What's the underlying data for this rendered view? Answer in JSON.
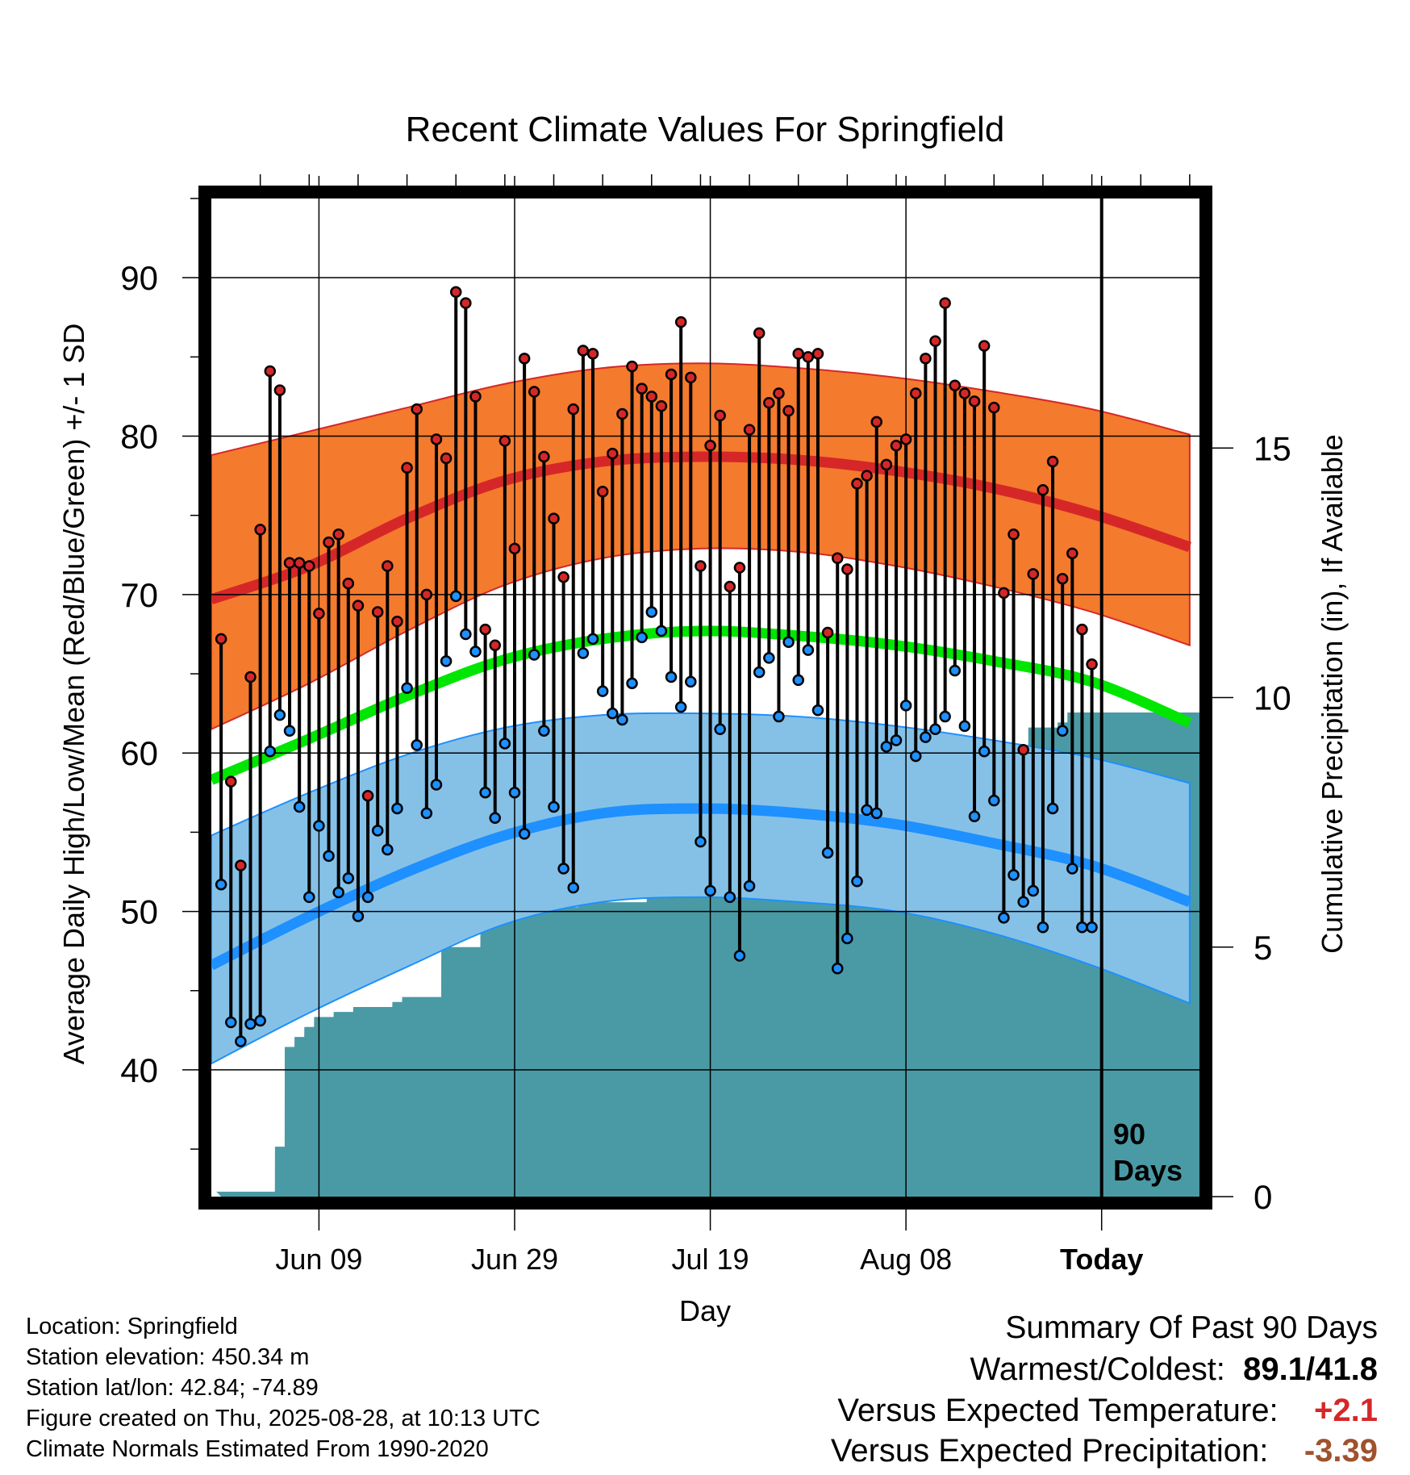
{
  "chart_data": {
    "type": "line",
    "title": "Recent Climate Values For Springfield",
    "xlabel": "Day",
    "ylabel": "Average Daily High/Low/Mean (Red/Blue/Green) +/- 1 SD",
    "y2label": "Cumulative Precipitation (in), If Available",
    "ylim": [
      32,
      95
    ],
    "y2lim": [
      0,
      20
    ],
    "yticks": [
      40,
      50,
      60,
      70,
      80,
      90
    ],
    "y2ticks": [
      0,
      5,
      10,
      15
    ],
    "xlim": [
      "2025-05-29",
      "2025-09-07"
    ],
    "xticks": [
      {
        "date": "2025-06-09",
        "label": "Jun 09"
      },
      {
        "date": "2025-06-29",
        "label": "Jun 29"
      },
      {
        "date": "2025-07-19",
        "label": "Jul 19"
      },
      {
        "date": "2025-08-08",
        "label": "Aug 08"
      },
      {
        "date": "2025-08-28",
        "label": "Today"
      }
    ],
    "today_marker": {
      "date": "2025-08-28",
      "label_line1": "90",
      "label_line2": "Days"
    },
    "dates": [
      "2025-05-30",
      "2025-05-31",
      "2025-06-01",
      "2025-06-02",
      "2025-06-03",
      "2025-06-04",
      "2025-06-05",
      "2025-06-06",
      "2025-06-07",
      "2025-06-08",
      "2025-06-09",
      "2025-06-10",
      "2025-06-11",
      "2025-06-12",
      "2025-06-13",
      "2025-06-14",
      "2025-06-15",
      "2025-06-16",
      "2025-06-17",
      "2025-06-18",
      "2025-06-19",
      "2025-06-20",
      "2025-06-21",
      "2025-06-22",
      "2025-06-23",
      "2025-06-24",
      "2025-06-25",
      "2025-06-26",
      "2025-06-27",
      "2025-06-28",
      "2025-06-29",
      "2025-06-30",
      "2025-07-01",
      "2025-07-02",
      "2025-07-03",
      "2025-07-04",
      "2025-07-05",
      "2025-07-06",
      "2025-07-07",
      "2025-07-08",
      "2025-07-09",
      "2025-07-10",
      "2025-07-11",
      "2025-07-12",
      "2025-07-13",
      "2025-07-14",
      "2025-07-15",
      "2025-07-16",
      "2025-07-17",
      "2025-07-18",
      "2025-07-19",
      "2025-07-20",
      "2025-07-21",
      "2025-07-22",
      "2025-07-23",
      "2025-07-24",
      "2025-07-25",
      "2025-07-26",
      "2025-07-27",
      "2025-07-28",
      "2025-07-29",
      "2025-07-30",
      "2025-07-31",
      "2025-08-01",
      "2025-08-02",
      "2025-08-03",
      "2025-08-04",
      "2025-08-05",
      "2025-08-06",
      "2025-08-07",
      "2025-08-08",
      "2025-08-09",
      "2025-08-10",
      "2025-08-11",
      "2025-08-12",
      "2025-08-13",
      "2025-08-14",
      "2025-08-15",
      "2025-08-16",
      "2025-08-17",
      "2025-08-18",
      "2025-08-19",
      "2025-08-20",
      "2025-08-21",
      "2025-08-22",
      "2025-08-23",
      "2025-08-24",
      "2025-08-25",
      "2025-08-26",
      "2025-08-27"
    ],
    "series": [
      {
        "name": "High",
        "color": "#d62728",
        "values": [
          67.2,
          58.2,
          52.9,
          64.8,
          74.1,
          84.1,
          82.9,
          72.0,
          72.0,
          71.8,
          68.8,
          73.3,
          73.8,
          70.7,
          69.3,
          57.3,
          68.9,
          71.8,
          68.3,
          78.0,
          81.7,
          70.0,
          79.8,
          78.6,
          89.1,
          88.4,
          82.5,
          67.8,
          66.8,
          79.7,
          72.9,
          84.9,
          82.8,
          78.7,
          74.8,
          71.1,
          81.7,
          85.4,
          85.2,
          76.5,
          78.9,
          81.4,
          84.4,
          83.0,
          82.5,
          81.9,
          83.9,
          87.2,
          83.7,
          71.8,
          79.4,
          81.3,
          70.5,
          71.7,
          80.4,
          86.5,
          82.1,
          82.7,
          81.6,
          85.2,
          85.0,
          85.2,
          67.6,
          72.3,
          71.6,
          77.0,
          77.5,
          80.9,
          78.2,
          79.4,
          79.8,
          82.7,
          84.9,
          86.0,
          88.4,
          83.2,
          82.7,
          82.2,
          85.7,
          81.8,
          70.1,
          73.8,
          60.2,
          71.3,
          76.6,
          78.4,
          71.0,
          72.6,
          67.8,
          65.6
        ]
      },
      {
        "name": "Low",
        "color": "#1e90ff",
        "values": [
          51.7,
          43.0,
          41.8,
          42.9,
          43.1,
          60.1,
          62.4,
          61.4,
          56.6,
          50.9,
          55.4,
          53.5,
          51.2,
          52.1,
          49.7,
          50.9,
          55.1,
          53.9,
          56.5,
          64.1,
          60.5,
          56.2,
          58.0,
          65.8,
          69.9,
          67.5,
          66.4,
          57.5,
          55.9,
          60.6,
          57.5,
          54.9,
          66.2,
          61.4,
          56.6,
          52.7,
          51.5,
          66.3,
          67.2,
          63.9,
          62.5,
          62.1,
          64.4,
          67.3,
          68.9,
          67.7,
          64.8,
          62.9,
          64.5,
          54.4,
          51.3,
          61.5,
          50.9,
          47.2,
          51.6,
          65.1,
          66.0,
          62.3,
          67.0,
          64.6,
          66.5,
          62.7,
          53.7,
          46.4,
          48.3,
          51.9,
          56.4,
          56.2,
          60.4,
          60.8,
          63.0,
          59.8,
          61.0,
          61.5,
          62.3,
          65.2,
          61.7,
          56.0,
          60.1,
          57.0,
          49.6,
          52.3,
          50.6,
          51.3,
          49.0,
          56.5,
          61.4,
          52.7,
          49.0,
          49.0
        ]
      },
      {
        "name": "Cumulative Precipitation",
        "color": "#4a9aa5",
        "values": [
          0.1,
          0.1,
          0.1,
          0.1,
          0.1,
          0.1,
          1.0,
          3.0,
          3.2,
          3.4,
          3.6,
          3.6,
          3.7,
          3.7,
          3.8,
          3.8,
          3.8,
          3.8,
          3.9,
          4.0,
          4.0,
          4.0,
          4.0,
          5.0,
          5.0,
          5.0,
          5.0,
          5.5,
          5.6,
          5.6,
          5.6,
          5.6,
          5.7,
          5.8,
          5.8,
          5.8,
          5.8,
          5.9,
          5.9,
          5.9,
          5.9,
          5.9,
          5.9,
          5.9,
          6.0,
          6.2,
          6.2,
          6.2,
          6.2,
          6.2,
          6.3,
          6.3,
          6.3,
          6.3,
          6.3,
          6.3,
          6.4,
          6.4,
          6.9,
          7.0,
          7.0,
          7.0,
          7.1,
          7.9,
          8.3,
          8.3,
          8.3,
          8.3,
          8.3,
          8.3,
          8.3,
          8.3,
          8.3,
          8.3,
          8.3,
          8.3,
          8.5,
          8.5,
          8.5,
          8.5,
          8.5,
          8.5,
          8.6,
          9.4,
          9.4,
          9.4,
          9.5,
          9.7,
          9.7,
          9.7
        ]
      }
    ],
    "normals": {
      "dates": [
        "2025-05-29",
        "2025-06-08",
        "2025-06-18",
        "2025-06-28",
        "2025-07-08",
        "2025-07-18",
        "2025-07-28",
        "2025-08-07",
        "2025-08-17",
        "2025-08-27",
        "2025-09-06"
      ],
      "high_mean": [
        69.7,
        71.8,
        74.8,
        77.2,
        78.4,
        78.7,
        78.5,
        77.8,
        76.7,
        75.1,
        73.0
      ],
      "high_upper": [
        78.8,
        80.3,
        81.8,
        83.3,
        84.3,
        84.6,
        84.3,
        83.7,
        82.8,
        81.7,
        80.1
      ],
      "high_lower": [
        61.5,
        64.4,
        67.7,
        70.6,
        72.3,
        72.9,
        72.7,
        71.8,
        70.5,
        68.9,
        66.8
      ],
      "mean_mean": [
        58.3,
        60.9,
        63.6,
        65.9,
        67.2,
        67.7,
        67.4,
        66.8,
        65.8,
        64.5,
        61.9
      ],
      "low_mean": [
        46.6,
        49.7,
        52.5,
        54.8,
        56.2,
        56.5,
        56.2,
        55.5,
        54.3,
        52.9,
        50.6
      ],
      "low_upper": [
        54.8,
        57.5,
        59.9,
        61.6,
        62.4,
        62.5,
        62.3,
        61.7,
        60.8,
        59.7,
        58.1
      ],
      "low_lower": [
        40.4,
        43.6,
        46.5,
        49.2,
        50.6,
        50.9,
        50.6,
        50.0,
        48.6,
        46.6,
        44.2
      ],
      "colors": {
        "high_band": "#f47a2e",
        "high_line": "#d62728",
        "low_band": "#85c1e7",
        "low_line": "#1e90ff",
        "mean_line": "#00e600"
      }
    }
  },
  "info": {
    "location": "Location: Springfield",
    "elevation": "Station elevation: 450.34 m",
    "latlon": "Station lat/lon: 42.84; -74.89",
    "created": "Figure created on Thu, 2025-08-28, at 10:13 UTC",
    "normals": "Climate Normals Estimated From 1990-2020"
  },
  "summary": {
    "title": "Summary Of Past 90 Days",
    "warm_cold_label": "Warmest/Coldest:",
    "warmest": "89.1",
    "separator": "/",
    "coldest": "41.8",
    "temp_label": "Versus Expected Temperature:",
    "temp_value": "+2.1",
    "temp_color": "#d62728",
    "precip_label": "Versus Expected Precipitation:",
    "precip_value": "-3.39",
    "precip_color": "#a0522d"
  }
}
